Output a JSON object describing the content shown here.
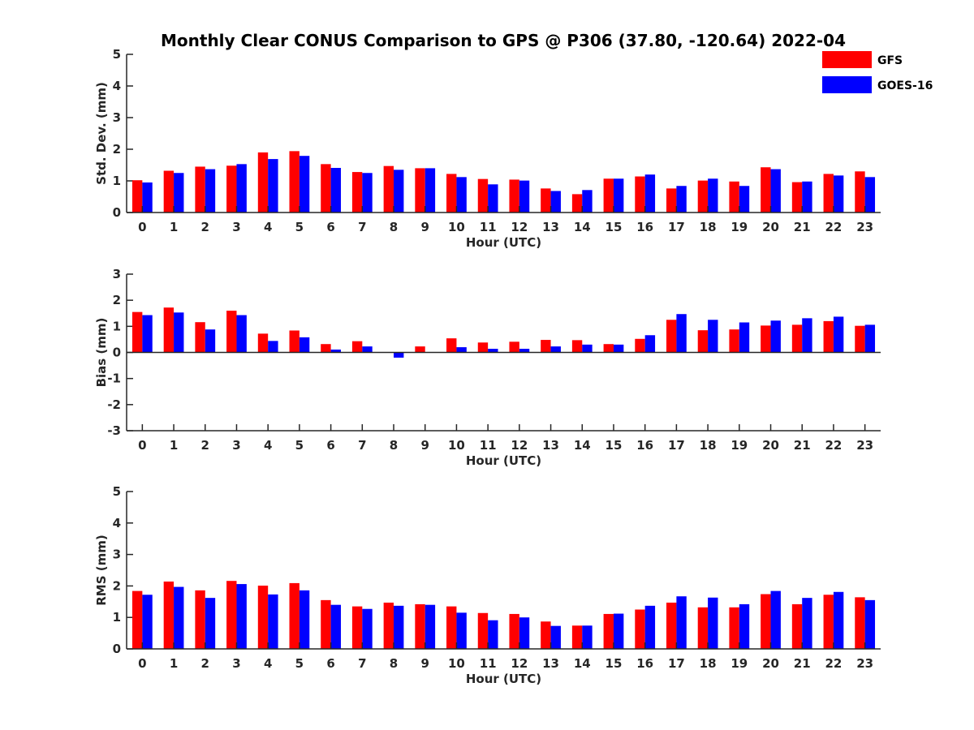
{
  "chart_data": {
    "title": "Monthly Clear CONUS Comparison to GPS @ P306 (37.80, -120.64) 2022-04",
    "legend": {
      "placement": "top-right",
      "entries": [
        {
          "name": "GFS",
          "color": "#ff0000"
        },
        {
          "name": "GOES-16",
          "color": "#0000ff"
        }
      ]
    },
    "panels": [
      {
        "type": "bar",
        "ylabel": "Std. Dev. (mm)",
        "xlabel": "Hour (UTC)",
        "ylim": [
          0,
          5
        ],
        "yticks": [
          "0",
          "1",
          "2",
          "3",
          "4",
          "5"
        ],
        "categories": [
          "0",
          "1",
          "2",
          "3",
          "4",
          "5",
          "6",
          "7",
          "8",
          "9",
          "10",
          "11",
          "12",
          "13",
          "14",
          "15",
          "16",
          "17",
          "18",
          "19",
          "20",
          "21",
          "22",
          "23"
        ],
        "series": [
          {
            "name": "GFS",
            "color": "#ff0000",
            "values": [
              1.02,
              1.32,
              1.45,
              1.48,
              1.9,
              1.94,
              1.53,
              1.28,
              1.47,
              1.4,
              1.22,
              1.06,
              1.04,
              0.76,
              0.58,
              1.07,
              1.14,
              0.76,
              1.01,
              0.98,
              1.43,
              0.96,
              1.22,
              1.3
            ]
          },
          {
            "name": "GOES-16",
            "color": "#0000ff",
            "values": [
              0.95,
              1.25,
              1.37,
              1.53,
              1.69,
              1.79,
              1.41,
              1.25,
              1.35,
              1.4,
              1.12,
              0.89,
              1.01,
              0.68,
              0.71,
              1.07,
              1.2,
              0.84,
              1.07,
              0.84,
              1.37,
              0.98,
              1.17,
              1.12
            ]
          }
        ]
      },
      {
        "type": "bar",
        "ylabel": "Bias (mm)",
        "xlabel": "Hour (UTC)",
        "ylim": [
          -3,
          3
        ],
        "yticks": [
          "-3",
          "-2",
          "-1",
          "0",
          "1",
          "2",
          "3"
        ],
        "categories": [
          "0",
          "1",
          "2",
          "3",
          "4",
          "5",
          "6",
          "7",
          "8",
          "9",
          "10",
          "11",
          "12",
          "13",
          "14",
          "15",
          "16",
          "17",
          "18",
          "19",
          "20",
          "21",
          "22",
          "23"
        ],
        "series": [
          {
            "name": "GFS",
            "color": "#ff0000",
            "values": [
              1.55,
              1.72,
              1.16,
              1.6,
              0.72,
              0.84,
              0.32,
              0.43,
              0.0,
              0.23,
              0.54,
              0.38,
              0.41,
              0.48,
              0.47,
              0.32,
              0.52,
              1.25,
              0.85,
              0.88,
              1.03,
              1.06,
              1.2,
              1.02
            ]
          },
          {
            "name": "GOES-16",
            "color": "#0000ff",
            "values": [
              1.43,
              1.53,
              0.88,
              1.43,
              0.44,
              0.58,
              0.11,
              0.23,
              -0.2,
              0.0,
              0.2,
              0.14,
              0.14,
              0.23,
              0.3,
              0.3,
              0.66,
              1.47,
              1.25,
              1.15,
              1.22,
              1.31,
              1.37,
              1.06
            ]
          }
        ]
      },
      {
        "type": "bar",
        "ylabel": "RMS (mm)",
        "xlabel": "Hour (UTC)",
        "ylim": [
          0,
          5
        ],
        "yticks": [
          "0",
          "1",
          "2",
          "3",
          "4",
          "5"
        ],
        "categories": [
          "0",
          "1",
          "2",
          "3",
          "4",
          "5",
          "6",
          "7",
          "8",
          "9",
          "10",
          "11",
          "12",
          "13",
          "14",
          "15",
          "16",
          "17",
          "18",
          "19",
          "20",
          "21",
          "22",
          "23"
        ],
        "series": [
          {
            "name": "GFS",
            "color": "#ff0000",
            "values": [
              1.84,
              2.14,
              1.86,
              2.16,
              2.01,
              2.09,
              1.55,
              1.35,
              1.47,
              1.42,
              1.35,
              1.14,
              1.11,
              0.87,
              0.74,
              1.11,
              1.25,
              1.47,
              1.32,
              1.32,
              1.74,
              1.42,
              1.72,
              1.64
            ]
          },
          {
            "name": "GOES-16",
            "color": "#0000ff",
            "values": [
              1.72,
              1.97,
              1.62,
              2.06,
              1.73,
              1.86,
              1.4,
              1.27,
              1.37,
              1.4,
              1.15,
              0.91,
              1.0,
              0.73,
              0.74,
              1.12,
              1.37,
              1.67,
              1.63,
              1.42,
              1.84,
              1.62,
              1.81,
              1.55
            ]
          }
        ]
      }
    ]
  }
}
